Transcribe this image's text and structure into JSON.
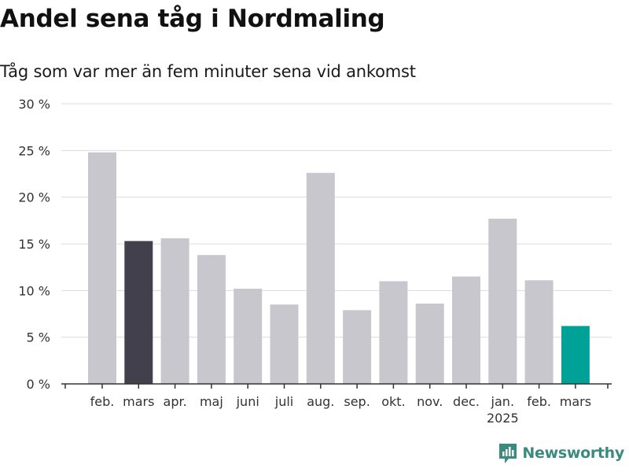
{
  "title": "Andel sena tåg i Nordmaling",
  "subtitle": "Tåg som var mer än fem minuter sena vid ankomst",
  "brand": {
    "name": "Newsworthy",
    "color": "#3a8a80",
    "icon": "newsworthy-logo-icon"
  },
  "colors": {
    "default": "#c8c7cd",
    "highlight_previous": "#43404d",
    "highlight_current": "#00a298",
    "grid": "#dcdcdc",
    "axis": "#333333"
  },
  "chart_data": {
    "type": "bar",
    "categories": [
      "feb.",
      "mars",
      "apr.",
      "maj",
      "juni",
      "juli",
      "aug.",
      "sep.",
      "okt.",
      "nov.",
      "dec.",
      "jan.",
      "feb.",
      "mars"
    ],
    "category_sublabels": [
      "",
      "",
      "",
      "",
      "",
      "",
      "",
      "",
      "",
      "",
      "",
      "2025",
      "",
      ""
    ],
    "values": [
      24.8,
      15.3,
      15.6,
      13.8,
      10.2,
      8.5,
      22.6,
      7.9,
      11.0,
      8.6,
      11.5,
      17.7,
      11.1,
      6.2
    ],
    "highlight": [
      "default",
      "highlight_previous",
      "default",
      "default",
      "default",
      "default",
      "default",
      "default",
      "default",
      "default",
      "default",
      "default",
      "default",
      "highlight_current"
    ],
    "ylim": [
      0,
      30
    ],
    "yticks": [
      0,
      5,
      10,
      15,
      20,
      25,
      30
    ],
    "ytick_suffix": " %",
    "xlabel": "",
    "ylabel": "",
    "grid": true
  }
}
